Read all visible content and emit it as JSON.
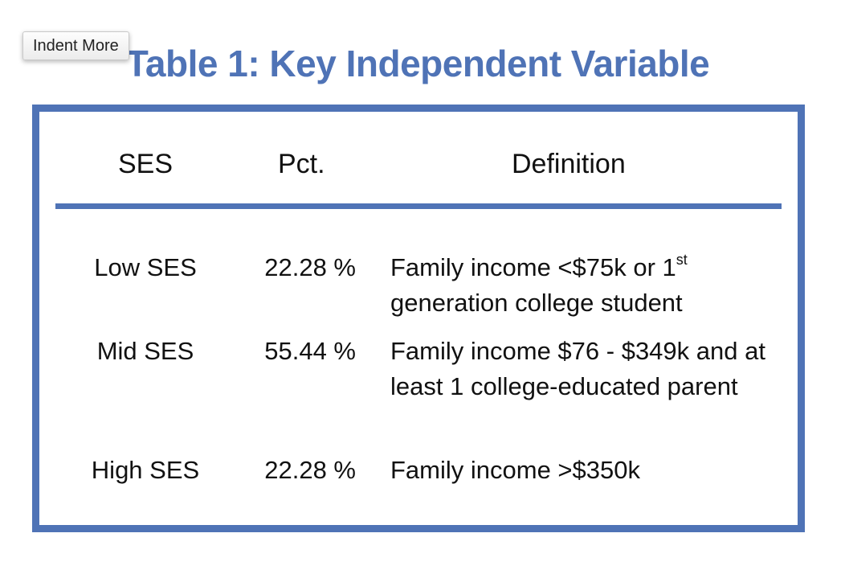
{
  "title": "Table 1: Key Independent Variable",
  "tooltip_button": "Indent More",
  "table": {
    "headers": {
      "ses": "SES",
      "pct": "Pct.",
      "definition": "Definition"
    },
    "rows": [
      {
        "ses": "Low SES",
        "pct": "22.28 %",
        "definition_a": "Family income <$75k or 1",
        "definition_sup": "st",
        "definition_b": "generation college student"
      },
      {
        "ses": "Mid SES",
        "pct": "55.44 %",
        "definition": "Family income $76 - $349k and at least 1 college-educated parent"
      },
      {
        "ses": "High SES",
        "pct": "22.28 %",
        "definition": "Family income >$350k"
      }
    ]
  },
  "colors": {
    "accent": "#4f73b6",
    "text": "#111111"
  }
}
